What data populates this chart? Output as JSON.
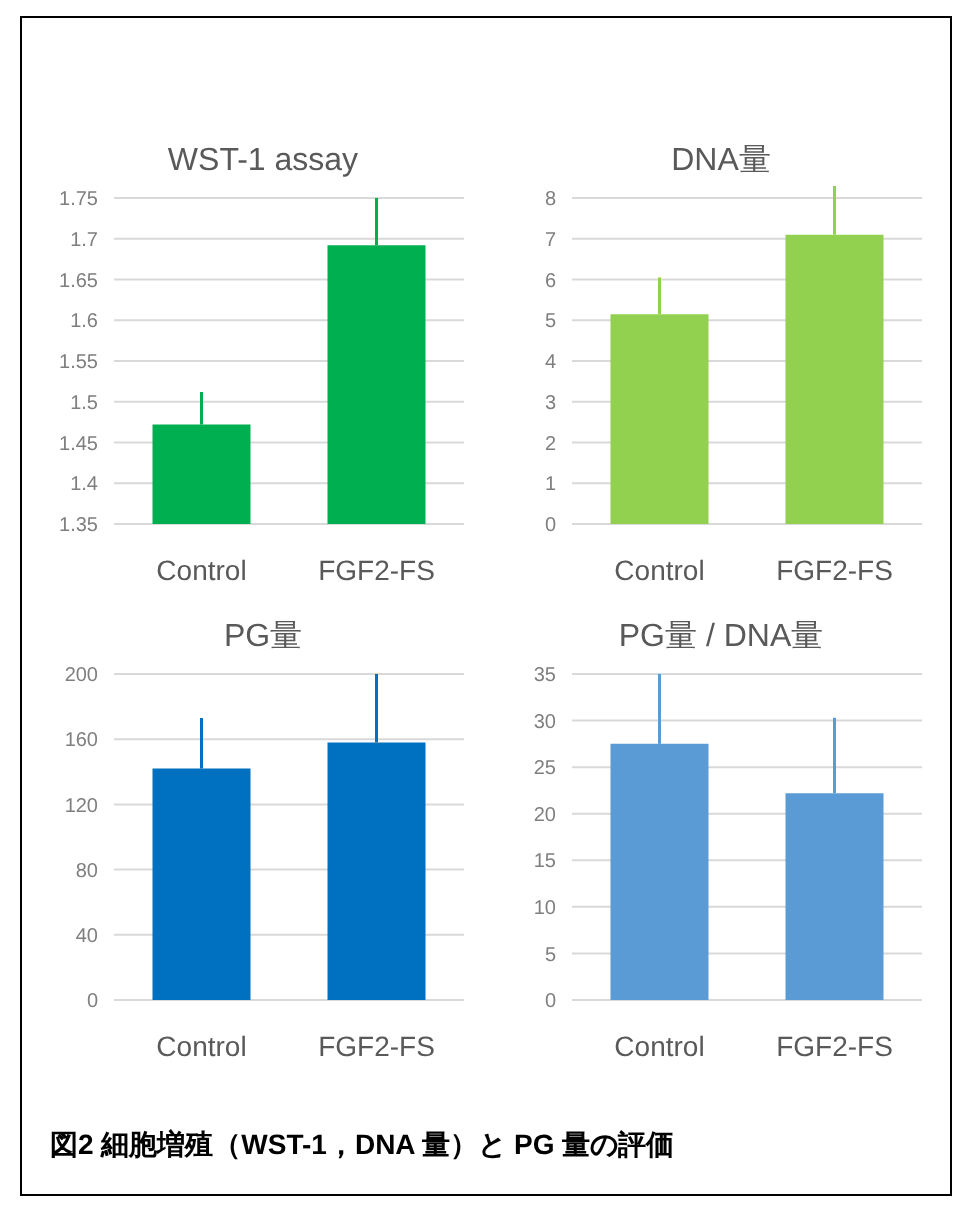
{
  "chart_data": [
    {
      "type": "bar",
      "title": "WST-1 assay",
      "categories": [
        "Control",
        "FGF2-FS"
      ],
      "values": [
        1.472,
        1.692
      ],
      "errors": [
        [
          1.472,
          1.512
        ],
        [
          1.692,
          1.75
        ]
      ],
      "color": "#00b050",
      "ylim": [
        1.35,
        1.75
      ],
      "yticks": [
        1.35,
        1.4,
        1.45,
        1.5,
        1.55,
        1.6,
        1.65,
        1.7,
        1.75
      ],
      "grid": "y"
    },
    {
      "type": "bar",
      "title": "DNA量",
      "categories": [
        "Control",
        "FGF2-FS"
      ],
      "values": [
        5.15,
        7.1
      ],
      "errors": [
        [
          5.15,
          6.05
        ],
        [
          7.1,
          8.3
        ]
      ],
      "color": "#92d050",
      "ylim": [
        0,
        8
      ],
      "yticks": [
        0,
        1,
        2,
        3,
        4,
        5,
        6,
        7,
        8
      ],
      "grid": "y"
    },
    {
      "type": "bar",
      "title": "PG量",
      "categories": [
        "Control",
        "FGF2-FS"
      ],
      "values": [
        142,
        158
      ],
      "errors": [
        [
          142,
          173
        ],
        [
          158,
          200
        ]
      ],
      "color": "#0070c0",
      "ylim": [
        0,
        200
      ],
      "yticks": [
        0,
        40,
        80,
        120,
        160,
        200
      ],
      "grid": "y"
    },
    {
      "type": "bar",
      "title": "PG量 / DNA量",
      "categories": [
        "Control",
        "FGF2-FS"
      ],
      "values": [
        27.5,
        22.2
      ],
      "errors": [
        [
          27.5,
          35
        ],
        [
          22.2,
          30.3
        ]
      ],
      "color": "#5b9bd5",
      "ylim": [
        0,
        35
      ],
      "yticks": [
        0,
        5,
        10,
        15,
        20,
        25,
        30,
        35
      ],
      "grid": "y",
      "annotations": [
        "図2 細胞増殖（WST-1，DNA 量）と PG 量の評価"
      ]
    }
  ]
}
